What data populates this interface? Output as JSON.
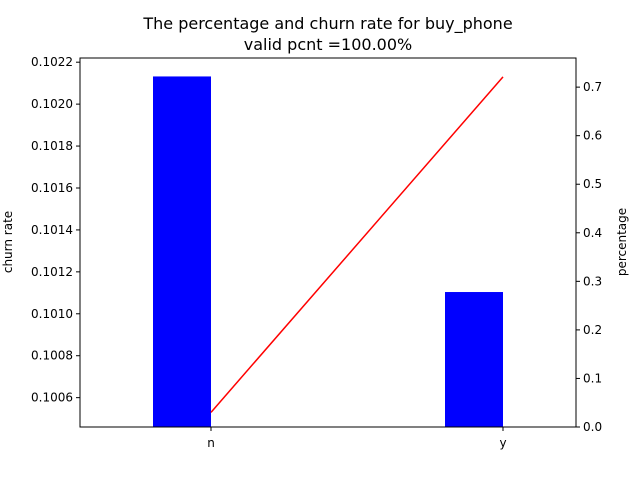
{
  "chart_data": {
    "type": "bar",
    "title": "The percentage and churn rate for buy_phone",
    "subtitle": "valid pcnt =100.00%",
    "categories": [
      "n",
      "y"
    ],
    "left_axis": {
      "label": "churn rate",
      "range": [
        0.10046,
        0.10222
      ],
      "ticks": [
        "0.1006",
        "0.1008",
        "0.1010",
        "0.1012",
        "0.1014",
        "0.1016",
        "0.1018",
        "0.1020",
        "0.1022"
      ],
      "tick_values": [
        0.1006,
        0.1008,
        0.101,
        0.1012,
        0.1014,
        0.1016,
        0.1018,
        0.102,
        0.1022
      ]
    },
    "right_axis": {
      "label": "percentage",
      "range": [
        0.0,
        0.76
      ],
      "ticks": [
        "0.0",
        "0.1",
        "0.2",
        "0.3",
        "0.4",
        "0.5",
        "0.6",
        "0.7"
      ],
      "tick_values": [
        0.0,
        0.1,
        0.2,
        0.3,
        0.4,
        0.5,
        0.6,
        0.7
      ]
    },
    "series": [
      {
        "type": "bar",
        "axis": "right",
        "color": "#0000ff",
        "values": [
          0.722,
          0.278
        ]
      },
      {
        "type": "line",
        "axis": "left",
        "color": "#ff0000",
        "values": [
          0.10053,
          0.10213
        ]
      }
    ],
    "grid": false,
    "legend": "none"
  }
}
